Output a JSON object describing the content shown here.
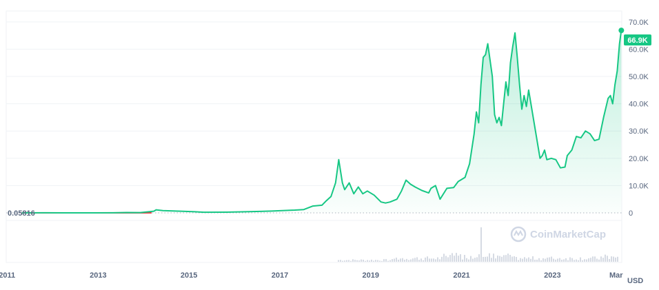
{
  "chart_data": {
    "type": "area",
    "currency": "USD",
    "baseline_label": "0.05816",
    "current_label": "66.9K",
    "current_value": 66900,
    "watermark": "CoinMarketCap",
    "y_ticks": [
      {
        "value": 0,
        "label": "0"
      },
      {
        "value": 10000,
        "label": "10.0K"
      },
      {
        "value": 20000,
        "label": "20.0K"
      },
      {
        "value": 30000,
        "label": "30.0K"
      },
      {
        "value": 40000,
        "label": "40.0K"
      },
      {
        "value": 50000,
        "label": "50.0K"
      },
      {
        "value": 60000,
        "label": "60.0K"
      },
      {
        "value": 70000,
        "label": "70.0K"
      }
    ],
    "ylim": [
      0,
      74000
    ],
    "xlim": [
      2010.65,
      2024.2
    ],
    "x_ticks": [
      {
        "value": 2010.7,
        "label": "2011"
      },
      {
        "value": 2012.7,
        "label": "2013"
      },
      {
        "value": 2014.7,
        "label": "2015"
      },
      {
        "value": 2016.7,
        "label": "2017"
      },
      {
        "value": 2018.7,
        "label": "2019"
      },
      {
        "value": 2020.7,
        "label": "2021"
      },
      {
        "value": 2022.7,
        "label": "2023"
      },
      {
        "value": 2024.2,
        "label": "Mar"
      }
    ],
    "colors": {
      "line": "#16c784",
      "below_baseline": "#ea3943",
      "badge": "#16c784",
      "grid": "#eff2f5"
    },
    "price_series": [
      [
        2011.0,
        0.06
      ],
      [
        2011.5,
        15
      ],
      [
        2012.0,
        5
      ],
      [
        2012.5,
        7
      ],
      [
        2013.0,
        13
      ],
      [
        2013.3,
        120
      ],
      [
        2013.6,
        100
      ],
      [
        2013.9,
        600
      ],
      [
        2013.95,
        1100
      ],
      [
        2014.1,
        800
      ],
      [
        2014.5,
        600
      ],
      [
        2014.8,
        400
      ],
      [
        2015.0,
        220
      ],
      [
        2015.5,
        240
      ],
      [
        2016.0,
        420
      ],
      [
        2016.5,
        650
      ],
      [
        2016.9,
        950
      ],
      [
        2017.0,
        1000
      ],
      [
        2017.2,
        1200
      ],
      [
        2017.4,
        2500
      ],
      [
        2017.6,
        2800
      ],
      [
        2017.7,
        4500
      ],
      [
        2017.8,
        6000
      ],
      [
        2017.9,
        11000
      ],
      [
        2017.97,
        19500
      ],
      [
        2018.05,
        11000
      ],
      [
        2018.1,
        8500
      ],
      [
        2018.2,
        11000
      ],
      [
        2018.3,
        7000
      ],
      [
        2018.4,
        9500
      ],
      [
        2018.5,
        7000
      ],
      [
        2018.6,
        8000
      ],
      [
        2018.75,
        6500
      ],
      [
        2018.9,
        4000
      ],
      [
        2019.0,
        3600
      ],
      [
        2019.1,
        4000
      ],
      [
        2019.25,
        5000
      ],
      [
        2019.35,
        8000
      ],
      [
        2019.45,
        12000
      ],
      [
        2019.55,
        10500
      ],
      [
        2019.65,
        9500
      ],
      [
        2019.8,
        8200
      ],
      [
        2019.95,
        7300
      ],
      [
        2020.0,
        9000
      ],
      [
        2020.1,
        10000
      ],
      [
        2020.2,
        5000
      ],
      [
        2020.35,
        9000
      ],
      [
        2020.5,
        9300
      ],
      [
        2020.6,
        11500
      ],
      [
        2020.75,
        13000
      ],
      [
        2020.85,
        18000
      ],
      [
        2020.95,
        29000
      ],
      [
        2021.0,
        37000
      ],
      [
        2021.05,
        33000
      ],
      [
        2021.1,
        47000
      ],
      [
        2021.15,
        57000
      ],
      [
        2021.2,
        58000
      ],
      [
        2021.25,
        62000
      ],
      [
        2021.3,
        56000
      ],
      [
        2021.35,
        50000
      ],
      [
        2021.4,
        36000
      ],
      [
        2021.45,
        33000
      ],
      [
        2021.5,
        35000
      ],
      [
        2021.55,
        32000
      ],
      [
        2021.6,
        40000
      ],
      [
        2021.65,
        48000
      ],
      [
        2021.7,
        43000
      ],
      [
        2021.75,
        55000
      ],
      [
        2021.8,
        61000
      ],
      [
        2021.85,
        66000
      ],
      [
        2021.9,
        57000
      ],
      [
        2021.95,
        47000
      ],
      [
        2022.0,
        38000
      ],
      [
        2022.05,
        43000
      ],
      [
        2022.1,
        39000
      ],
      [
        2022.15,
        45000
      ],
      [
        2022.2,
        40000
      ],
      [
        2022.3,
        30000
      ],
      [
        2022.4,
        20000
      ],
      [
        2022.45,
        21000
      ],
      [
        2022.5,
        23000
      ],
      [
        2022.55,
        19500
      ],
      [
        2022.65,
        20000
      ],
      [
        2022.75,
        19500
      ],
      [
        2022.85,
        16500
      ],
      [
        2022.95,
        16800
      ],
      [
        2023.0,
        21000
      ],
      [
        2023.1,
        23000
      ],
      [
        2023.2,
        28000
      ],
      [
        2023.3,
        27500
      ],
      [
        2023.4,
        30000
      ],
      [
        2023.5,
        29000
      ],
      [
        2023.6,
        26500
      ],
      [
        2023.7,
        27000
      ],
      [
        2023.8,
        35000
      ],
      [
        2023.9,
        42000
      ],
      [
        2023.95,
        43000
      ],
      [
        2024.0,
        40000
      ],
      [
        2024.05,
        47000
      ],
      [
        2024.1,
        52000
      ],
      [
        2024.15,
        62000
      ],
      [
        2024.19,
        66900
      ]
    ]
  }
}
